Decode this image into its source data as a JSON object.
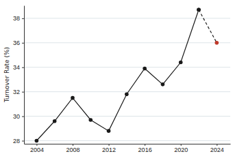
{
  "chart_data": {
    "type": "line",
    "y_label": "Turnover Rate (%)",
    "x": [
      2004,
      2006,
      2008,
      2010,
      2012,
      2014,
      2016,
      2018,
      2020,
      2022,
      2024
    ],
    "series": [
      {
        "color": "#1a1a1a",
        "line_style": "solid",
        "marker": "circle",
        "colors": [
          "#1a1a1a",
          "#1a1a1a",
          "#1a1a1a",
          "#1a1a1a",
          "#1a1a1a",
          "#1a1a1a",
          "#1a1a1a",
          "#1a1a1a",
          "#1a1a1a",
          "#1a1a1a",
          "#1a1a1a"
        ],
        "values": [
          28.0,
          29.6,
          31.5,
          29.7,
          28.8,
          31.8,
          33.9,
          32.6,
          34.4,
          38.7,
          null
        ]
      },
      {
        "color": "#1a1a1a",
        "line_style": "dashed",
        "marker": "circle",
        "colors": [
          "#1a1a1a",
          "#1a1a1a",
          "#1a1a1a",
          "#1a1a1a",
          "#1a1a1a",
          "#1a1a1a",
          "#1a1a1a",
          "#1a1a1a",
          "#1a1a1a",
          "#1a1a1a",
          "#c0392b"
        ],
        "values": [
          null,
          null,
          null,
          null,
          null,
          null,
          null,
          null,
          null,
          38.7,
          36.0
        ]
      }
    ],
    "xlim": [
      2002.6,
      2025.5
    ],
    "xticks": [
      2004,
      2008,
      2012,
      2016,
      2020,
      2024
    ],
    "ylim": [
      27.75,
      39.05
    ],
    "yticks": [
      28,
      30,
      32,
      34,
      36,
      38
    ],
    "grid": true
  }
}
